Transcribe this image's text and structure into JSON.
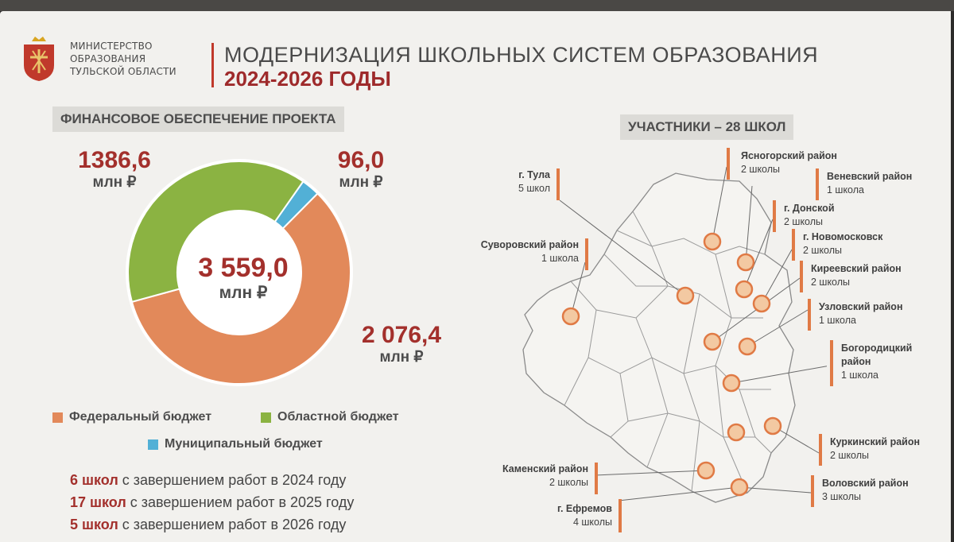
{
  "header": {
    "ministry_lines": [
      "МИНИСТЕРСТВО",
      "ОБРАЗОВАНИЯ",
      "ТУЛЬСКОЙ ОБЛАСТИ"
    ],
    "title": "МОДЕРНИЗАЦИЯ ШКОЛЬНЫХ СИСТЕМ ОБРАЗОВАНИЯ",
    "subtitle": "2024-2026 ГОДЫ"
  },
  "finance": {
    "section_title": "ФИНАНСОВОЕ ОБЕСПЕЧЕНИЕ ПРОЕКТА",
    "total_value": "3 559,0",
    "total_unit": "млн ₽",
    "regional_value": "1386,6",
    "regional_unit": "млн ₽",
    "municipal_value": "96,0",
    "municipal_unit": "млн ₽",
    "federal_value": "2 076,4",
    "federal_unit": "млн ₽",
    "legend": {
      "federal": "Федеральный бюджет",
      "regional": "Областной бюджет",
      "municipal": "Муниципальный бюджет"
    },
    "completion": [
      {
        "count": "6 школ",
        "text": " с завершением работ в 2024 году"
      },
      {
        "count": "17 школ",
        "text": " с завершением работ в 2025 году"
      },
      {
        "count": "5 школ",
        "text": " с завершением работ в 2026 году"
      }
    ]
  },
  "chart_data": {
    "type": "pie",
    "title": "",
    "slices": [
      {
        "label": "Федеральный бюджет",
        "value": 2076.4,
        "color": "#e2895a"
      },
      {
        "label": "Областной бюджет",
        "value": 1386.6,
        "color": "#8bb342"
      },
      {
        "label": "Муниципальный бюджет",
        "value": 96.0,
        "color": "#52b0d6"
      }
    ],
    "total": 3559.0,
    "unit": "млн ₽"
  },
  "participants": {
    "section_title": "УЧАСТНИКИ – 28 ШКОЛ",
    "districts": [
      {
        "name": "Ясногорский район",
        "count": "2 школы"
      },
      {
        "name": "Веневский район",
        "count": "1 школа"
      },
      {
        "name": "г. Донской",
        "count": "2 школы"
      },
      {
        "name": "г. Новомосковск",
        "count": "2 школы"
      },
      {
        "name": "Киреевский район",
        "count": "2 школы"
      },
      {
        "name": "Узловский район",
        "count": "1 школа"
      },
      {
        "name": "Богородицкий район",
        "count": "1 школа"
      },
      {
        "name": "Куркинский район",
        "count": "2 школы"
      },
      {
        "name": "Воловский район",
        "count": "3 школы"
      },
      {
        "name": "г. Тула",
        "count": "5 школ"
      },
      {
        "name": "Суворовский район",
        "count": "1 школа"
      },
      {
        "name": "Каменский район",
        "count": "2 школы"
      },
      {
        "name": "г. Ефремов",
        "count": "4 школы"
      }
    ]
  },
  "colors": {
    "accent_red": "#a3302c",
    "federal": "#e2895a",
    "regional": "#8bb342",
    "municipal": "#52b0d6",
    "marker": "#e07a45"
  }
}
